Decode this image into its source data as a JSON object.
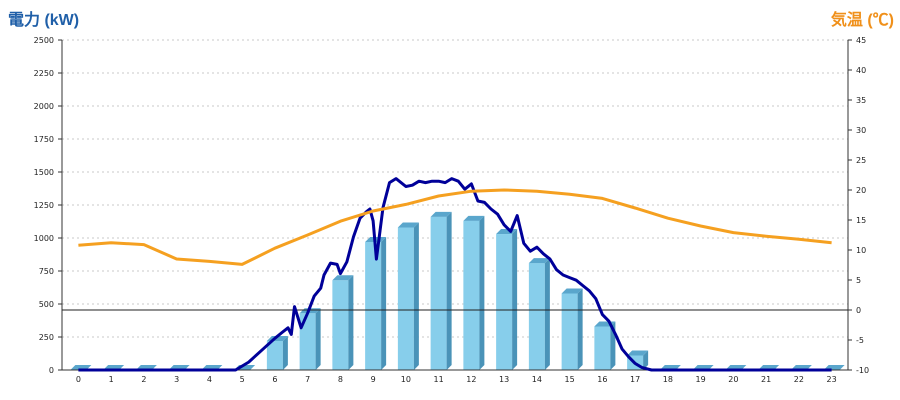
{
  "chart_data": {
    "type": "bar",
    "left_axis_title": "電力 (kW)",
    "right_axis_title": "気温 (℃)",
    "categories": [
      "0",
      "1",
      "2",
      "3",
      "4",
      "5",
      "6",
      "7",
      "8",
      "9",
      "10",
      "11",
      "12",
      "13",
      "14",
      "15",
      "16",
      "17",
      "18",
      "19",
      "20",
      "21",
      "22",
      "23"
    ],
    "y_left": {
      "min": 0,
      "max": 2500,
      "ticks": [
        0,
        250,
        500,
        750,
        1000,
        1250,
        1500,
        1750,
        2000,
        2250,
        2500
      ]
    },
    "y_right": {
      "min": -10,
      "max": 45,
      "ticks": [
        -10,
        -5,
        0,
        5,
        10,
        15,
        20,
        25,
        30,
        35,
        40,
        45
      ]
    },
    "grid": true,
    "zero_line_right": 0,
    "series": [
      {
        "kind": "bar",
        "axis": "left",
        "color": "#87ceeb",
        "values": [
          0,
          0,
          0,
          0,
          0,
          0,
          220,
          430,
          680,
          970,
          1080,
          1160,
          1130,
          1030,
          810,
          580,
          330,
          110,
          0,
          0,
          0,
          0,
          0,
          0
        ]
      },
      {
        "kind": "line",
        "axis": "left",
        "color": "#000099",
        "x": [
          0,
          1,
          2,
          3,
          4,
          4.8,
          5.2,
          5.6,
          6,
          6.2,
          6.4,
          6.5,
          6.6,
          6.8,
          7,
          7.2,
          7.4,
          7.5,
          7.7,
          7.9,
          8,
          8.2,
          8.4,
          8.6,
          8.8,
          8.9,
          9,
          9.1,
          9.3,
          9.5,
          9.7,
          10,
          10.2,
          10.4,
          10.6,
          10.8,
          11,
          11.2,
          11.4,
          11.6,
          11.8,
          12,
          12.2,
          12.4,
          12.6,
          12.8,
          13,
          13.2,
          13.4,
          13.6,
          13.8,
          14,
          14.2,
          14.4,
          14.6,
          14.8,
          15,
          15.2,
          15.4,
          15.6,
          15.8,
          16,
          16.2,
          16.4,
          16.6,
          16.8,
          17,
          17.2,
          17.5,
          18,
          19,
          20,
          21,
          22,
          23
        ],
        "y": [
          0,
          0,
          0,
          0,
          0,
          0,
          60,
          150,
          240,
          280,
          320,
          270,
          480,
          320,
          430,
          560,
          620,
          720,
          810,
          800,
          730,
          820,
          1010,
          1150,
          1200,
          1220,
          1130,
          840,
          1230,
          1420,
          1450,
          1390,
          1400,
          1430,
          1420,
          1430,
          1430,
          1420,
          1450,
          1430,
          1370,
          1410,
          1280,
          1270,
          1220,
          1180,
          1100,
          1050,
          1170,
          960,
          900,
          930,
          880,
          840,
          760,
          720,
          700,
          680,
          640,
          600,
          540,
          420,
          370,
          270,
          160,
          100,
          50,
          20,
          0,
          0,
          0,
          0,
          0,
          0,
          0
        ]
      },
      {
        "kind": "line",
        "axis": "right",
        "color": "#f5a020",
        "values": [
          10.8,
          11.2,
          10.9,
          8.5,
          8.1,
          7.6,
          10.3,
          12.5,
          14.8,
          16.5,
          17.6,
          19.0,
          19.8,
          20.0,
          19.8,
          19.3,
          18.6,
          17.0,
          15.3,
          14.0,
          12.9,
          12.3,
          11.8,
          11.2
        ]
      }
    ]
  }
}
